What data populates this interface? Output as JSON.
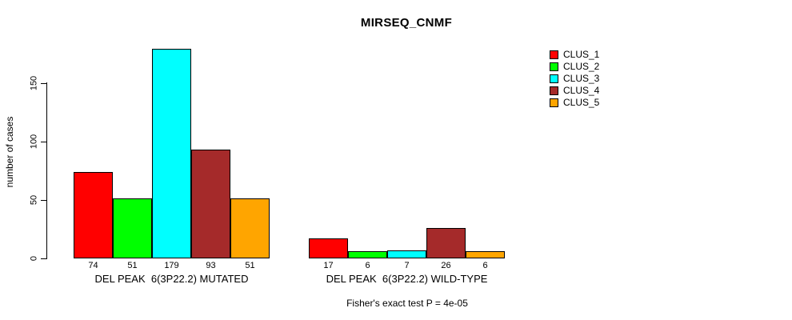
{
  "title": "MIRSEQ_CNMF",
  "chart_data": {
    "type": "bar",
    "title": "MIRSEQ_CNMF",
    "xlabel": "",
    "ylabel": "number of cases",
    "yticks": [
      0,
      50,
      100,
      150
    ],
    "ylim": [
      0,
      185
    ],
    "grid": false,
    "legend_position": "top-right",
    "bar_value_labels_shown": true,
    "categories": [
      "DEL PEAK  6(3P22.2) MUTATED",
      "DEL PEAK  6(3P22.2) WILD-TYPE"
    ],
    "series": [
      {
        "name": "CLUS_1",
        "color": "#ff0000",
        "values": [
          74,
          17
        ]
      },
      {
        "name": "CLUS_2",
        "color": "#00ff00",
        "values": [
          51,
          6
        ]
      },
      {
        "name": "CLUS_3",
        "color": "#00ffff",
        "values": [
          179,
          7
        ]
      },
      {
        "name": "CLUS_4",
        "color": "#a52a2a",
        "values": [
          93,
          26
        ]
      },
      {
        "name": "CLUS_5",
        "color": "#ffa500",
        "values": [
          51,
          6
        ]
      }
    ],
    "annotation": "Fisher's exact test P = 4e-05"
  },
  "colors": {
    "background": "#ffffff",
    "axis": "#000000",
    "text": "#000000",
    "bar_border": "#000000"
  }
}
